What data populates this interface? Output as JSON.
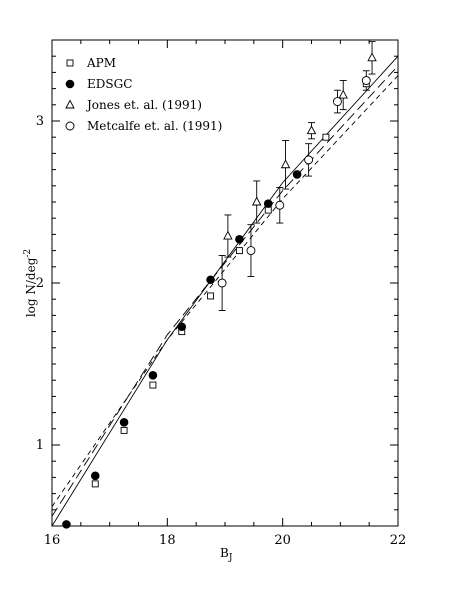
{
  "chart_data": {
    "type": "scatter",
    "title": "",
    "xlabel_main": "B",
    "xlabel_sub": "J",
    "ylabel": "log N/deg",
    "ylabel_sup": "-2",
    "xlim": [
      16,
      22
    ],
    "ylim": [
      0.5,
      3.5
    ],
    "x_ticks": [
      16,
      18,
      20,
      22
    ],
    "y_ticks": [
      1,
      2,
      3
    ],
    "x_tick_labels": [
      "16",
      "18",
      "20",
      "22"
    ],
    "y_tick_labels": [
      "1",
      "2",
      "3"
    ],
    "legend": {
      "placement": "top-left",
      "entries": [
        {
          "marker": "square-open",
          "label": "APM"
        },
        {
          "marker": "circle-filled",
          "label": "EDSGC"
        },
        {
          "marker": "triangle-open",
          "label": "Jones et. al. (1991)"
        },
        {
          "marker": "circle-open",
          "label": "Metcalfe et. al. (1991)"
        }
      ]
    },
    "series": [
      {
        "marker": "square-open",
        "points": [
          {
            "x": 16.75,
            "y": 0.76
          },
          {
            "x": 17.25,
            "y": 1.09
          },
          {
            "x": 17.75,
            "y": 1.37
          },
          {
            "x": 18.25,
            "y": 1.7
          },
          {
            "x": 18.75,
            "y": 1.92
          },
          {
            "x": 19.25,
            "y": 2.2
          },
          {
            "x": 19.75,
            "y": 2.45
          },
          {
            "x": 20.75,
            "y": 2.9
          },
          {
            "x": 21.45,
            "y": 3.23
          }
        ]
      },
      {
        "marker": "circle-filled",
        "points": [
          {
            "x": 16.25,
            "y": 0.51
          },
          {
            "x": 16.75,
            "y": 0.81
          },
          {
            "x": 17.25,
            "y": 1.14
          },
          {
            "x": 17.75,
            "y": 1.43
          },
          {
            "x": 18.25,
            "y": 1.73
          },
          {
            "x": 18.75,
            "y": 2.02
          },
          {
            "x": 19.25,
            "y": 2.27
          },
          {
            "x": 19.75,
            "y": 2.49
          },
          {
            "x": 20.25,
            "y": 2.67
          }
        ]
      },
      {
        "marker": "triangle-open",
        "points": [
          {
            "x": 19.05,
            "y": 2.29,
            "err": 0.13
          },
          {
            "x": 19.55,
            "y": 2.5,
            "err": 0.13
          },
          {
            "x": 20.05,
            "y": 2.73,
            "err": 0.15
          },
          {
            "x": 20.5,
            "y": 2.94,
            "err": 0.05
          },
          {
            "x": 21.05,
            "y": 3.16,
            "err": 0.09
          },
          {
            "x": 21.55,
            "y": 3.39,
            "err": 0.1
          }
        ]
      },
      {
        "marker": "circle-open",
        "points": [
          {
            "x": 18.95,
            "y": 2.0,
            "err": 0.17
          },
          {
            "x": 19.45,
            "y": 2.2,
            "err": 0.16
          },
          {
            "x": 19.95,
            "y": 2.48,
            "err": 0.11
          },
          {
            "x": 20.45,
            "y": 2.76,
            "err": 0.1
          },
          {
            "x": 20.95,
            "y": 3.12,
            "err": 0.07
          },
          {
            "x": 21.45,
            "y": 3.25,
            "err": 0.06
          }
        ]
      }
    ],
    "model_lines": [
      {
        "style": "solid",
        "points": [
          [
            16,
            0.5
          ],
          [
            18,
            1.65
          ],
          [
            20,
            2.62
          ],
          [
            22,
            3.4
          ]
        ]
      },
      {
        "style": "long-dash",
        "points": [
          [
            16,
            0.56
          ],
          [
            18,
            1.68
          ],
          [
            20,
            2.57
          ],
          [
            22,
            3.34
          ]
        ]
      },
      {
        "style": "short-dash",
        "points": [
          [
            16,
            0.62
          ],
          [
            18,
            1.65
          ],
          [
            20,
            2.52
          ],
          [
            22,
            3.28
          ]
        ]
      }
    ]
  }
}
